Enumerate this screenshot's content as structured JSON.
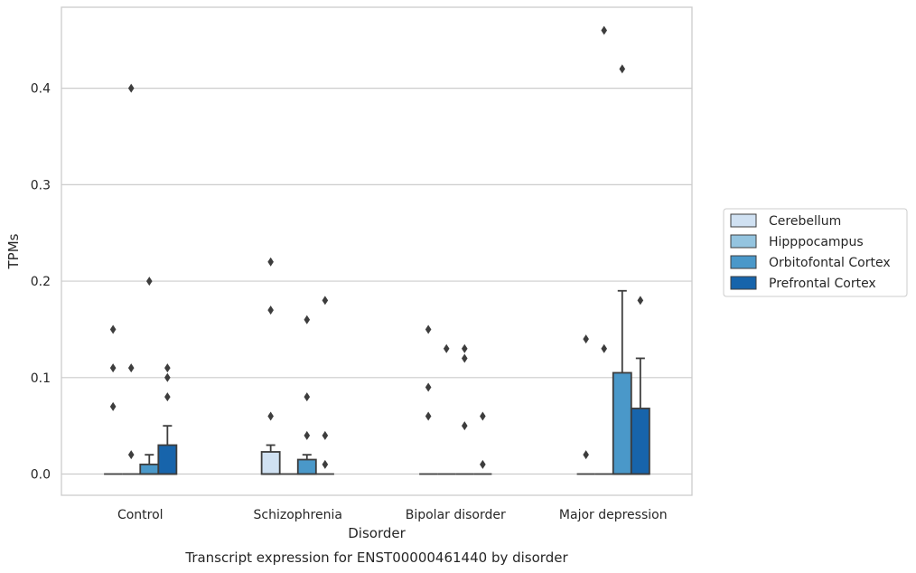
{
  "chart_data": {
    "type": "box",
    "caption": "Transcript expression for ENST00000461440 by disorder",
    "xlabel": "Disorder",
    "ylabel": "TPMs",
    "ylim": [
      -0.022,
      0.484
    ],
    "yticks": [
      0.0,
      0.1,
      0.2,
      0.3,
      0.4
    ],
    "ytick_labels": [
      "0.0",
      "0.1",
      "0.2",
      "0.3",
      "0.4"
    ],
    "grid": "horizontal",
    "legend_position": "right",
    "categories": [
      "Control",
      "Schizophrenia",
      "Bipolar disorder",
      "Major depression"
    ],
    "series": [
      {
        "name": "Cerebellum",
        "color": "#d0e1f2",
        "boxes": [
          {
            "q1": 0.0,
            "median": 0.0,
            "q3": 0.0,
            "whisker_low": 0.0,
            "whisker_high": 0.0,
            "outliers": [
              0.07,
              0.11,
              0.15
            ]
          },
          {
            "q1": 0.0,
            "median": 0.0,
            "q3": 0.023,
            "whisker_low": 0.0,
            "whisker_high": 0.03,
            "outliers": [
              0.06,
              0.17,
              0.22
            ]
          },
          {
            "q1": 0.0,
            "median": 0.0,
            "q3": 0.0,
            "whisker_low": 0.0,
            "whisker_high": 0.0,
            "outliers": [
              0.06,
              0.09,
              0.15
            ]
          },
          {
            "q1": 0.0,
            "median": 0.0,
            "q3": 0.0,
            "whisker_low": 0.0,
            "whisker_high": 0.0,
            "outliers": [
              0.02,
              0.14
            ]
          }
        ]
      },
      {
        "name": "Hipppocampus",
        "color": "#94c4df",
        "boxes": [
          {
            "q1": 0.0,
            "median": 0.0,
            "q3": 0.0,
            "whisker_low": 0.0,
            "whisker_high": 0.0,
            "outliers": [
              0.02,
              0.11,
              0.4
            ]
          },
          {
            "q1": 0.0,
            "median": 0.0,
            "q3": 0.0,
            "whisker_low": 0.0,
            "whisker_high": 0.0,
            "outliers": []
          },
          {
            "q1": 0.0,
            "median": 0.0,
            "q3": 0.0,
            "whisker_low": 0.0,
            "whisker_high": 0.0,
            "outliers": [
              0.13
            ]
          },
          {
            "q1": 0.0,
            "median": 0.0,
            "q3": 0.0,
            "whisker_low": 0.0,
            "whisker_high": 0.0,
            "outliers": [
              0.13,
              0.46
            ]
          }
        ]
      },
      {
        "name": "Orbitofontal Cortex",
        "color": "#4a98c9",
        "boxes": [
          {
            "q1": 0.0,
            "median": 0.0,
            "q3": 0.01,
            "whisker_low": 0.0,
            "whisker_high": 0.02,
            "outliers": [
              0.2
            ]
          },
          {
            "q1": 0.0,
            "median": 0.0,
            "q3": 0.015,
            "whisker_low": 0.0,
            "whisker_high": 0.02,
            "outliers": [
              0.04,
              0.08,
              0.16
            ]
          },
          {
            "q1": 0.0,
            "median": 0.0,
            "q3": 0.0,
            "whisker_low": 0.0,
            "whisker_high": 0.0,
            "outliers": [
              0.05,
              0.12,
              0.13
            ]
          },
          {
            "q1": 0.0,
            "median": 0.0,
            "q3": 0.105,
            "whisker_low": 0.0,
            "whisker_high": 0.19,
            "outliers": [
              0.42
            ]
          }
        ]
      },
      {
        "name": "Prefrontal Cortex",
        "color": "#1764ab",
        "boxes": [
          {
            "q1": 0.0,
            "median": 0.0,
            "q3": 0.03,
            "whisker_low": 0.0,
            "whisker_high": 0.05,
            "outliers": [
              0.08,
              0.1,
              0.11
            ]
          },
          {
            "q1": 0.0,
            "median": 0.0,
            "q3": 0.0,
            "whisker_low": 0.0,
            "whisker_high": 0.0,
            "outliers": [
              0.01,
              0.04,
              0.18
            ]
          },
          {
            "q1": 0.0,
            "median": 0.0,
            "q3": 0.0,
            "whisker_low": 0.0,
            "whisker_high": 0.0,
            "outliers": [
              0.01,
              0.06
            ]
          },
          {
            "q1": 0.0,
            "median": 0.0,
            "q3": 0.068,
            "whisker_low": 0.0,
            "whisker_high": 0.12,
            "outliers": [
              0.18
            ]
          }
        ]
      }
    ]
  }
}
